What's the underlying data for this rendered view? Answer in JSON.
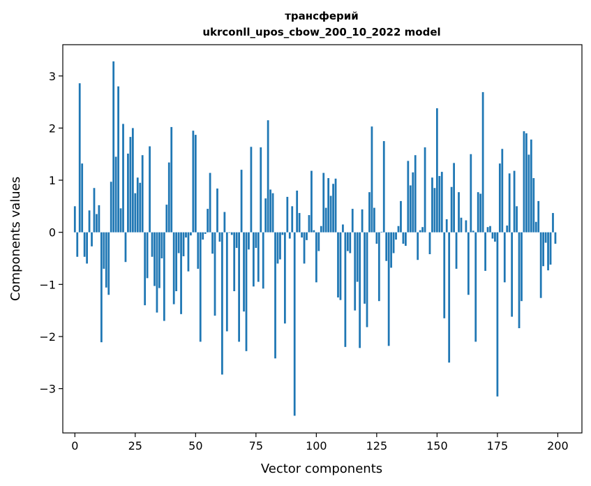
{
  "chart_data": {
    "type": "bar",
    "title": "трансферий",
    "subtitle": "ukrconll_upos_cbow_200_10_2022 model",
    "xlabel": "Vector components",
    "ylabel": "Components values",
    "xlim": [
      -5,
      210
    ],
    "ylim": [
      -3.85,
      3.6
    ],
    "xticks": [
      0,
      25,
      50,
      75,
      100,
      125,
      150,
      175,
      200
    ],
    "yticks": [
      -3,
      -2,
      -1,
      0,
      1,
      2,
      3
    ],
    "grid": false,
    "bar_color": "#1f77b4",
    "x": [
      0,
      1,
      2,
      3,
      4,
      5,
      6,
      7,
      8,
      9,
      10,
      11,
      12,
      13,
      14,
      15,
      16,
      17,
      18,
      19,
      20,
      21,
      22,
      23,
      24,
      25,
      26,
      27,
      28,
      29,
      30,
      31,
      32,
      33,
      34,
      35,
      36,
      37,
      38,
      39,
      40,
      41,
      42,
      43,
      44,
      45,
      46,
      47,
      48,
      49,
      50,
      51,
      52,
      53,
      54,
      55,
      56,
      57,
      58,
      59,
      60,
      61,
      62,
      63,
      64,
      65,
      66,
      67,
      68,
      69,
      70,
      71,
      72,
      73,
      74,
      75,
      76,
      77,
      78,
      79,
      80,
      81,
      82,
      83,
      84,
      85,
      86,
      87,
      88,
      89,
      90,
      91,
      92,
      93,
      94,
      95,
      96,
      97,
      98,
      99,
      100,
      101,
      102,
      103,
      104,
      105,
      106,
      107,
      108,
      109,
      110,
      111,
      112,
      113,
      114,
      115,
      116,
      117,
      118,
      119,
      120,
      121,
      122,
      123,
      124,
      125,
      126,
      127,
      128,
      129,
      130,
      131,
      132,
      133,
      134,
      135,
      136,
      137,
      138,
      139,
      140,
      141,
      142,
      143,
      144,
      145,
      146,
      147,
      148,
      149,
      150,
      151,
      152,
      153,
      154,
      155,
      156,
      157,
      158,
      159,
      160,
      161,
      162,
      163,
      164,
      165,
      166,
      167,
      168,
      169,
      170,
      171,
      172,
      173,
      174,
      175,
      176,
      177,
      178,
      179,
      180,
      181,
      182,
      183,
      184,
      185,
      186,
      187,
      188,
      189,
      190,
      191,
      192,
      193,
      194,
      195,
      196,
      197,
      198,
      199
    ],
    "values": [
      0.5,
      -0.47,
      2.86,
      1.32,
      -0.47,
      -0.6,
      0.42,
      -0.27,
      0.85,
      0.35,
      0.52,
      -2.11,
      -0.7,
      -1.06,
      -1.2,
      0.97,
      3.28,
      1.45,
      2.8,
      0.46,
      2.08,
      -0.57,
      1.51,
      1.83,
      2.0,
      0.75,
      1.05,
      0.95,
      1.48,
      -1.4,
      -0.88,
      1.65,
      -0.47,
      -1.03,
      -1.54,
      -1.07,
      -0.5,
      -1.7,
      0.53,
      1.34,
      2.02,
      -1.38,
      -1.13,
      -0.4,
      -1.57,
      -0.46,
      -0.1,
      -0.75,
      -0.06,
      1.95,
      1.87,
      -0.7,
      -2.1,
      -0.14,
      -0.03,
      0.45,
      1.14,
      -0.41,
      -1.6,
      0.84,
      -0.18,
      -2.73,
      0.39,
      -1.9,
      -0.01,
      -0.05,
      -1.13,
      -0.3,
      -2.1,
      1.2,
      -1.52,
      -2.28,
      -0.33,
      1.64,
      -1.04,
      -0.3,
      -0.95,
      1.63,
      -1.08,
      0.65,
      2.15,
      0.82,
      0.75,
      -2.42,
      -0.6,
      -0.52,
      -0.05,
      -1.75,
      0.68,
      -0.12,
      0.5,
      -3.52,
      0.8,
      0.37,
      -0.1,
      -0.6,
      -0.15,
      0.33,
      1.18,
      0.04,
      -0.96,
      -0.36,
      0.12,
      1.14,
      0.47,
      1.04,
      0.7,
      0.93,
      1.03,
      -1.25,
      -1.3,
      0.15,
      -2.2,
      -0.36,
      -0.4,
      0.45,
      -1.5,
      -0.95,
      -2.22,
      0.44,
      -1.37,
      -1.82,
      0.77,
      2.03,
      0.47,
      -0.22,
      -1.32,
      0.01,
      1.75,
      -0.55,
      -2.18,
      -0.68,
      -0.4,
      -0.14,
      0.12,
      0.6,
      -0.22,
      -0.26,
      1.37,
      0.9,
      1.15,
      1.48,
      -0.53,
      0.04,
      0.1,
      1.63,
      0.0,
      -0.42,
      1.05,
      0.85,
      2.38,
      1.08,
      1.16,
      -1.65,
      0.25,
      -2.5,
      0.87,
      1.33,
      -0.7,
      0.77,
      0.28,
      0.0,
      0.23,
      -1.2,
      1.5,
      0.03,
      -2.1,
      0.77,
      0.74,
      2.69,
      -0.74,
      0.1,
      0.12,
      -0.12,
      -0.18,
      -3.15,
      1.32,
      1.6,
      -0.96,
      0.13,
      1.13,
      -1.62,
      1.18,
      0.5,
      -1.84,
      -1.32,
      1.94,
      1.9,
      1.49,
      1.78,
      1.04,
      0.2,
      0.6,
      -1.26,
      -0.65,
      -0.2,
      -0.73,
      -0.62,
      0.37,
      -0.22
    ]
  }
}
